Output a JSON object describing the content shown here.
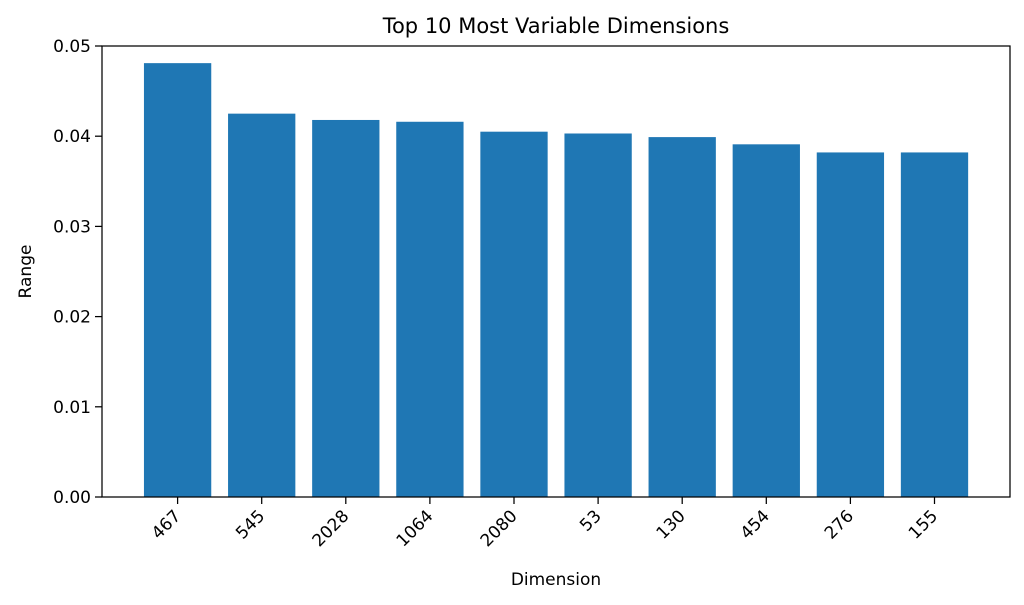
{
  "chart_data": {
    "type": "bar",
    "title": "Top 10 Most Variable Dimensions",
    "xlabel": "Dimension",
    "ylabel": "Range",
    "categories": [
      "467",
      "545",
      "2028",
      "1064",
      "2080",
      "53",
      "130",
      "454",
      "276",
      "155"
    ],
    "values": [
      0.0481,
      0.0425,
      0.0418,
      0.0416,
      0.0405,
      0.0403,
      0.0399,
      0.0391,
      0.0382,
      0.0382
    ],
    "ylim": [
      0,
      0.05
    ],
    "yticks": [
      0.0,
      0.01,
      0.02,
      0.03,
      0.04,
      0.05
    ],
    "ytick_labels": [
      "0.00",
      "0.01",
      "0.02",
      "0.03",
      "0.04",
      "0.05"
    ],
    "grid": false,
    "bar_color": "#1f77b4",
    "x_tick_rotation": 45
  }
}
